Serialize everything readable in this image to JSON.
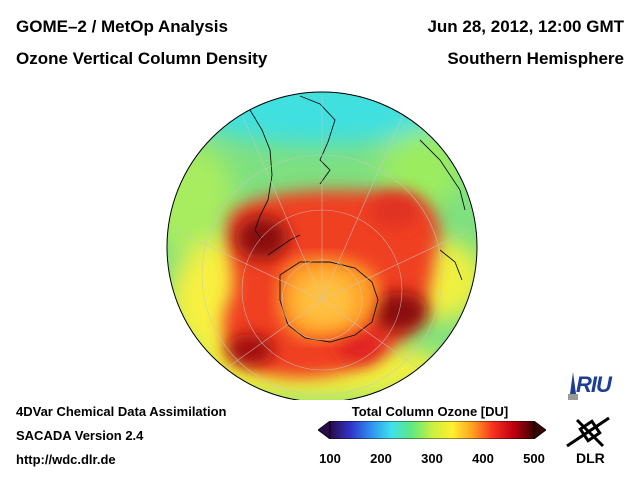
{
  "header": {
    "title_line1": "GOME–2 / MetOp Analysis",
    "title_line2": "Ozone Vertical Column Density",
    "date": "Jun 28, 2012, 12:00 GMT",
    "region": "Southern Hemisphere"
  },
  "footer": {
    "method": "4DVar Chemical Data Assimilation",
    "version": "SACADA Version 2.4",
    "url": "http://wdc.dlr.de"
  },
  "colorbar": {
    "title": "Total Column Ozone [DU]",
    "ticks": [
      "100",
      "200",
      "300",
      "400",
      "500"
    ],
    "min": 100,
    "max": 500,
    "colors": [
      "#2a0a4a",
      "#2f34c8",
      "#2f8ff0",
      "#3fe0ee",
      "#5ee880",
      "#c8f040",
      "#fff030",
      "#ffa020",
      "#f83020",
      "#c00010",
      "#3a0000"
    ]
  },
  "logos": {
    "riu": "RIU",
    "dlr": "DLR"
  },
  "map": {
    "projection": "orthographic",
    "hemisphere": "south",
    "background_ozone_du": 310,
    "ozone_features_du": [
      {
        "region": "south-atlantic-high",
        "value": 470
      },
      {
        "region": "south-pacific-high",
        "value": 460
      },
      {
        "region": "southern-indian-ocean-high",
        "value": 500
      },
      {
        "region": "east-of-argentina-high",
        "value": 505
      },
      {
        "region": "antarctica-low",
        "value": 345
      }
    ]
  }
}
